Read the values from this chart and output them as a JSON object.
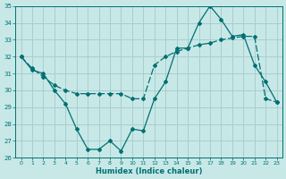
{
  "xlabel": "Humidex (Indice chaleur)",
  "x": [
    0,
    1,
    2,
    3,
    4,
    5,
    6,
    7,
    8,
    9,
    10,
    11,
    12,
    13,
    14,
    15,
    16,
    17,
    18,
    19,
    20,
    21,
    22,
    23
  ],
  "line1": [
    32,
    31.2,
    31,
    30,
    29.2,
    27.7,
    26.5,
    26.5,
    27,
    26.4,
    27.7,
    27.6,
    29.5,
    30.5,
    32.5,
    32.5,
    34,
    35,
    34.2,
    33.2,
    33.3,
    31.5,
    30.5,
    29.3
  ],
  "line2": [
    32,
    31.3,
    30.8,
    30.3,
    30.0,
    29.8,
    29.8,
    29.8,
    29.8,
    29.8,
    29.5,
    29.5,
    31.5,
    32.0,
    32.3,
    32.5,
    32.7,
    32.8,
    33.0,
    33.1,
    33.2,
    33.2,
    29.5,
    29.3
  ],
  "line_color": "#007070",
  "bg_color": "#c8e8e8",
  "grid_color": "#a8cece",
  "ylim": [
    26,
    35
  ],
  "xlim": [
    0,
    23
  ],
  "yticks": [
    26,
    27,
    28,
    29,
    30,
    31,
    32,
    33,
    34,
    35
  ],
  "xticks": [
    0,
    1,
    2,
    3,
    4,
    5,
    6,
    7,
    8,
    9,
    10,
    11,
    12,
    13,
    14,
    15,
    16,
    17,
    18,
    19,
    20,
    21,
    22,
    23
  ]
}
